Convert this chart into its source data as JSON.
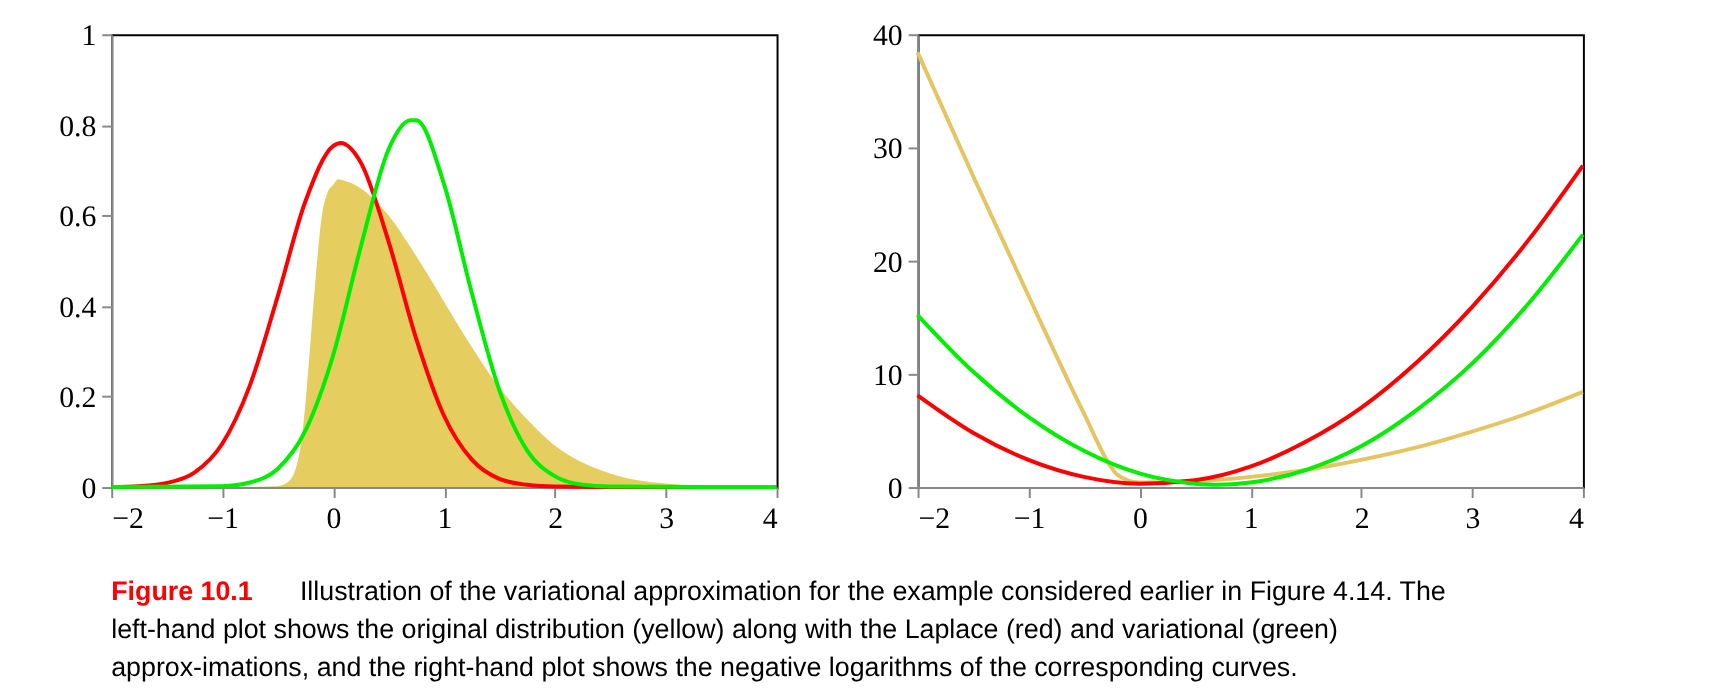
{
  "chart_data": [
    {
      "type": "line",
      "xlim": [
        -2,
        4
      ],
      "xticks": [
        -2,
        -1,
        0,
        1,
        2,
        3,
        4
      ],
      "ylim": [
        0,
        1
      ],
      "yticks": [
        0,
        0.2,
        0.4,
        0.6,
        0.8,
        1
      ],
      "grid": false,
      "annotations": [
        "Figure 10.1",
        "Illustration of the variational approximation for the example considered earlier in Figure 4.14. The left-hand plot shows the original distribution (yellow) along with the Laplace (red) and variational (green) approx-imations, and the right-hand plot shows the negative logarithms of the corresponding curves."
      ],
      "series": [
        {
          "type": "area",
          "color": "#e5cd60",
          "x": [
            -2,
            -1,
            -0.5,
            -0.4,
            -0.3,
            -0.25,
            -0.2,
            -0.15,
            -0.1,
            -0.05,
            0,
            0.05,
            0.1,
            0.25,
            0.5,
            0.75,
            1,
            1.25,
            1.5,
            1.75,
            2,
            2.25,
            2.5,
            2.75,
            3,
            3.5,
            4
          ],
          "values": [
            0,
            0,
            0.002,
            0.012,
            0.078,
            0.18,
            0.33,
            0.48,
            0.6,
            0.65,
            0.667,
            0.68,
            0.677,
            0.66,
            0.6,
            0.51,
            0.41,
            0.31,
            0.22,
            0.15,
            0.092,
            0.054,
            0.03,
            0.015,
            0.008,
            0.001,
            0
          ]
        },
        {
          "type": "line",
          "color": "#ff0000",
          "x": [
            -2,
            -1.75,
            -1.5,
            -1.25,
            -1,
            -0.75,
            -0.5,
            -0.25,
            0,
            0.07,
            0.25,
            0.5,
            0.75,
            1,
            1.25,
            1.5,
            1.75,
            2,
            2.5,
            4
          ],
          "values": [
            0,
            0.002,
            0.009,
            0.032,
            0.095,
            0.224,
            0.42,
            0.63,
            0.753,
            0.76,
            0.717,
            0.543,
            0.328,
            0.158,
            0.061,
            0.018,
            0.005,
            0.001,
            0,
            0
          ]
        },
        {
          "type": "line",
          "color": "#00ee00",
          "x": [
            -2,
            -1,
            -0.75,
            -0.5,
            -0.25,
            0,
            0.25,
            0.5,
            0.7,
            0.75,
            1,
            1.25,
            1.5,
            1.75,
            2,
            2.25,
            2.5,
            4
          ],
          "values": [
            0,
            0.002,
            0.01,
            0.04,
            0.124,
            0.29,
            0.53,
            0.745,
            0.81,
            0.81,
            0.67,
            0.43,
            0.214,
            0.081,
            0.024,
            0.005,
            0.001,
            0
          ]
        }
      ]
    },
    {
      "type": "line",
      "xlim": [
        -2,
        4
      ],
      "xticks": [
        -2,
        -1,
        0,
        1,
        2,
        3,
        4
      ],
      "ylim": [
        0,
        40
      ],
      "yticks": [
        0,
        10,
        20,
        30,
        40
      ],
      "grid": false,
      "series": [
        {
          "type": "line",
          "color": "#e5c462",
          "x": [
            -2,
            -1.5,
            -1,
            -0.5,
            -0.25,
            -0.2,
            0,
            0.5,
            1,
            1.5,
            2,
            2.5,
            3,
            3.5,
            4
          ],
          "values": [
            38.4,
            27.5,
            16.9,
            6.5,
            1.7,
            1.1,
            0.4,
            0.5,
            0.9,
            1.5,
            2.4,
            3.5,
            4.9,
            6.5,
            8.4
          ]
        },
        {
          "type": "line",
          "color": "#ff0000",
          "x": [
            -2,
            -1.5,
            -1,
            -0.5,
            0,
            0.5,
            1,
            1.5,
            2,
            2.5,
            3,
            3.5,
            4
          ],
          "values": [
            8.1,
            4.8,
            2.4,
            0.9,
            0.3,
            0.6,
            1.8,
            4,
            7,
            11,
            15.9,
            21.7,
            28.4
          ]
        },
        {
          "type": "line",
          "color": "#00ee00",
          "x": [
            -2,
            -1.5,
            -1,
            -0.5,
            0,
            0.5,
            0.7,
            1,
            1.5,
            2,
            2.5,
            3,
            3.5,
            4
          ],
          "values": [
            15.2,
            10.2,
            6.2,
            3.2,
            1.2,
            0.3,
            0.2,
            0.4,
            1.5,
            3.6,
            6.8,
            10.9,
            16.1,
            22.3
          ]
        }
      ]
    }
  ]
}
